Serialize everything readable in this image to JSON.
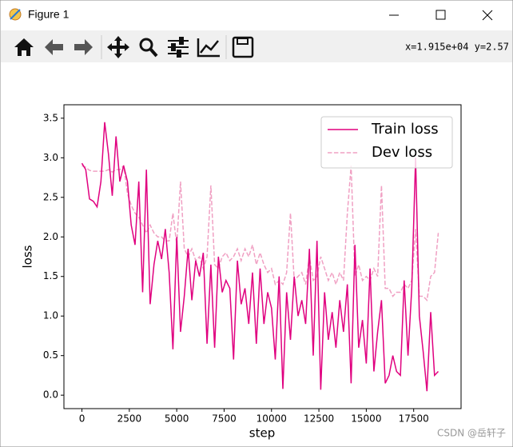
{
  "window": {
    "title": "Figure 1",
    "coordinates": "x=1.915e+04 y=2.57"
  },
  "chart_data": {
    "type": "line",
    "xlabel": "step",
    "ylabel": "loss",
    "x": [
      0,
      200,
      400,
      600,
      800,
      1000,
      1200,
      1400,
      1600,
      1800,
      2000,
      2200,
      2400,
      2600,
      2800,
      3000,
      3200,
      3400,
      3600,
      3800,
      4000,
      4200,
      4400,
      4600,
      4800,
      5000,
      5200,
      5400,
      5600,
      5800,
      6000,
      6200,
      6400,
      6600,
      6800,
      7000,
      7200,
      7400,
      7600,
      7800,
      8000,
      8200,
      8400,
      8600,
      8800,
      9000,
      9200,
      9400,
      9600,
      9800,
      10000,
      10200,
      10400,
      10600,
      10800,
      11000,
      11200,
      11400,
      11600,
      11800,
      12000,
      12200,
      12400,
      12600,
      12800,
      13000,
      13200,
      13400,
      13600,
      13800,
      14000,
      14200,
      14400,
      14600,
      14800,
      15000,
      15200,
      15400,
      15600,
      15800,
      16000,
      16200,
      16400,
      16600,
      16800,
      17000,
      17200,
      17400,
      17600,
      17800,
      18000,
      18200,
      18400,
      18600,
      18800
    ],
    "series": [
      {
        "name": "Train loss",
        "color": "#e0007f",
        "dash": "solid",
        "values": [
          2.93,
          2.85,
          2.48,
          2.45,
          2.38,
          2.7,
          3.45,
          3.05,
          2.52,
          3.27,
          2.7,
          2.9,
          2.7,
          2.15,
          1.9,
          2.7,
          1.3,
          2.85,
          1.15,
          1.65,
          1.95,
          1.72,
          2.1,
          1.55,
          0.58,
          2.0,
          0.8,
          1.25,
          1.85,
          1.2,
          1.7,
          1.5,
          1.8,
          0.65,
          1.65,
          0.6,
          1.75,
          1.3,
          1.45,
          1.35,
          0.45,
          1.7,
          1.15,
          1.35,
          0.9,
          1.55,
          0.65,
          1.6,
          0.9,
          1.3,
          1.1,
          0.45,
          1.5,
          0.08,
          1.3,
          0.7,
          1.5,
          1.0,
          1.2,
          0.9,
          1.85,
          0.5,
          1.95,
          0.07,
          1.3,
          0.7,
          1.05,
          0.6,
          1.2,
          0.8,
          1.4,
          0.15,
          1.9,
          0.6,
          0.95,
          0.4,
          1.6,
          0.3,
          0.8,
          1.2,
          0.15,
          0.25,
          0.5,
          0.3,
          0.25,
          1.45,
          0.5,
          1.35,
          3.0,
          1.0,
          0.55,
          0.05,
          1.05,
          0.25,
          0.3
        ]
      },
      {
        "name": "Dev loss",
        "color": "#f0a0c3",
        "dash": "dashed",
        "values": [
          2.9,
          2.88,
          2.84,
          2.83,
          2.83,
          2.83,
          2.83,
          2.85,
          2.82,
          2.85,
          2.85,
          2.9,
          2.55,
          2.4,
          2.3,
          2.25,
          2.15,
          2.05,
          2.15,
          2.05,
          2.0,
          2.0,
          1.95,
          1.95,
          2.3,
          1.9,
          2.7,
          1.85,
          1.75,
          1.85,
          1.7,
          1.75,
          1.6,
          1.75,
          2.65,
          1.65,
          1.6,
          1.75,
          1.8,
          1.7,
          1.75,
          1.85,
          1.7,
          1.85,
          1.75,
          1.9,
          1.65,
          1.8,
          1.65,
          1.55,
          1.6,
          1.4,
          1.45,
          1.4,
          1.55,
          2.3,
          1.45,
          1.5,
          1.55,
          1.4,
          1.75,
          1.45,
          1.5,
          1.75,
          1.6,
          1.45,
          1.55,
          1.4,
          1.55,
          1.45,
          2.3,
          2.9,
          1.5,
          1.65,
          1.45,
          1.5,
          1.45,
          1.6,
          1.5,
          2.65,
          1.35,
          1.35,
          1.25,
          1.3,
          1.3,
          1.4,
          1.35,
          1.45,
          2.1,
          1.25,
          1.25,
          1.2,
          1.5,
          1.55,
          2.05
        ]
      }
    ],
    "xlim": [
      -950,
      20000
    ],
    "xticks": [
      0,
      2500,
      5000,
      7500,
      10000,
      12500,
      15000,
      17500
    ],
    "ylim": [
      -0.17,
      3.67
    ],
    "yticks": [
      {
        "value": 0,
        "label": "0.0"
      },
      0.5,
      {
        "value": 1,
        "label": "1.0"
      },
      1.5,
      {
        "value": 2,
        "label": "2.0"
      },
      2.5,
      {
        "value": 3,
        "label": "3.0"
      },
      3.5
    ],
    "grid": false,
    "legend": "upper right"
  },
  "watermark": "CSDN @岳轩子"
}
